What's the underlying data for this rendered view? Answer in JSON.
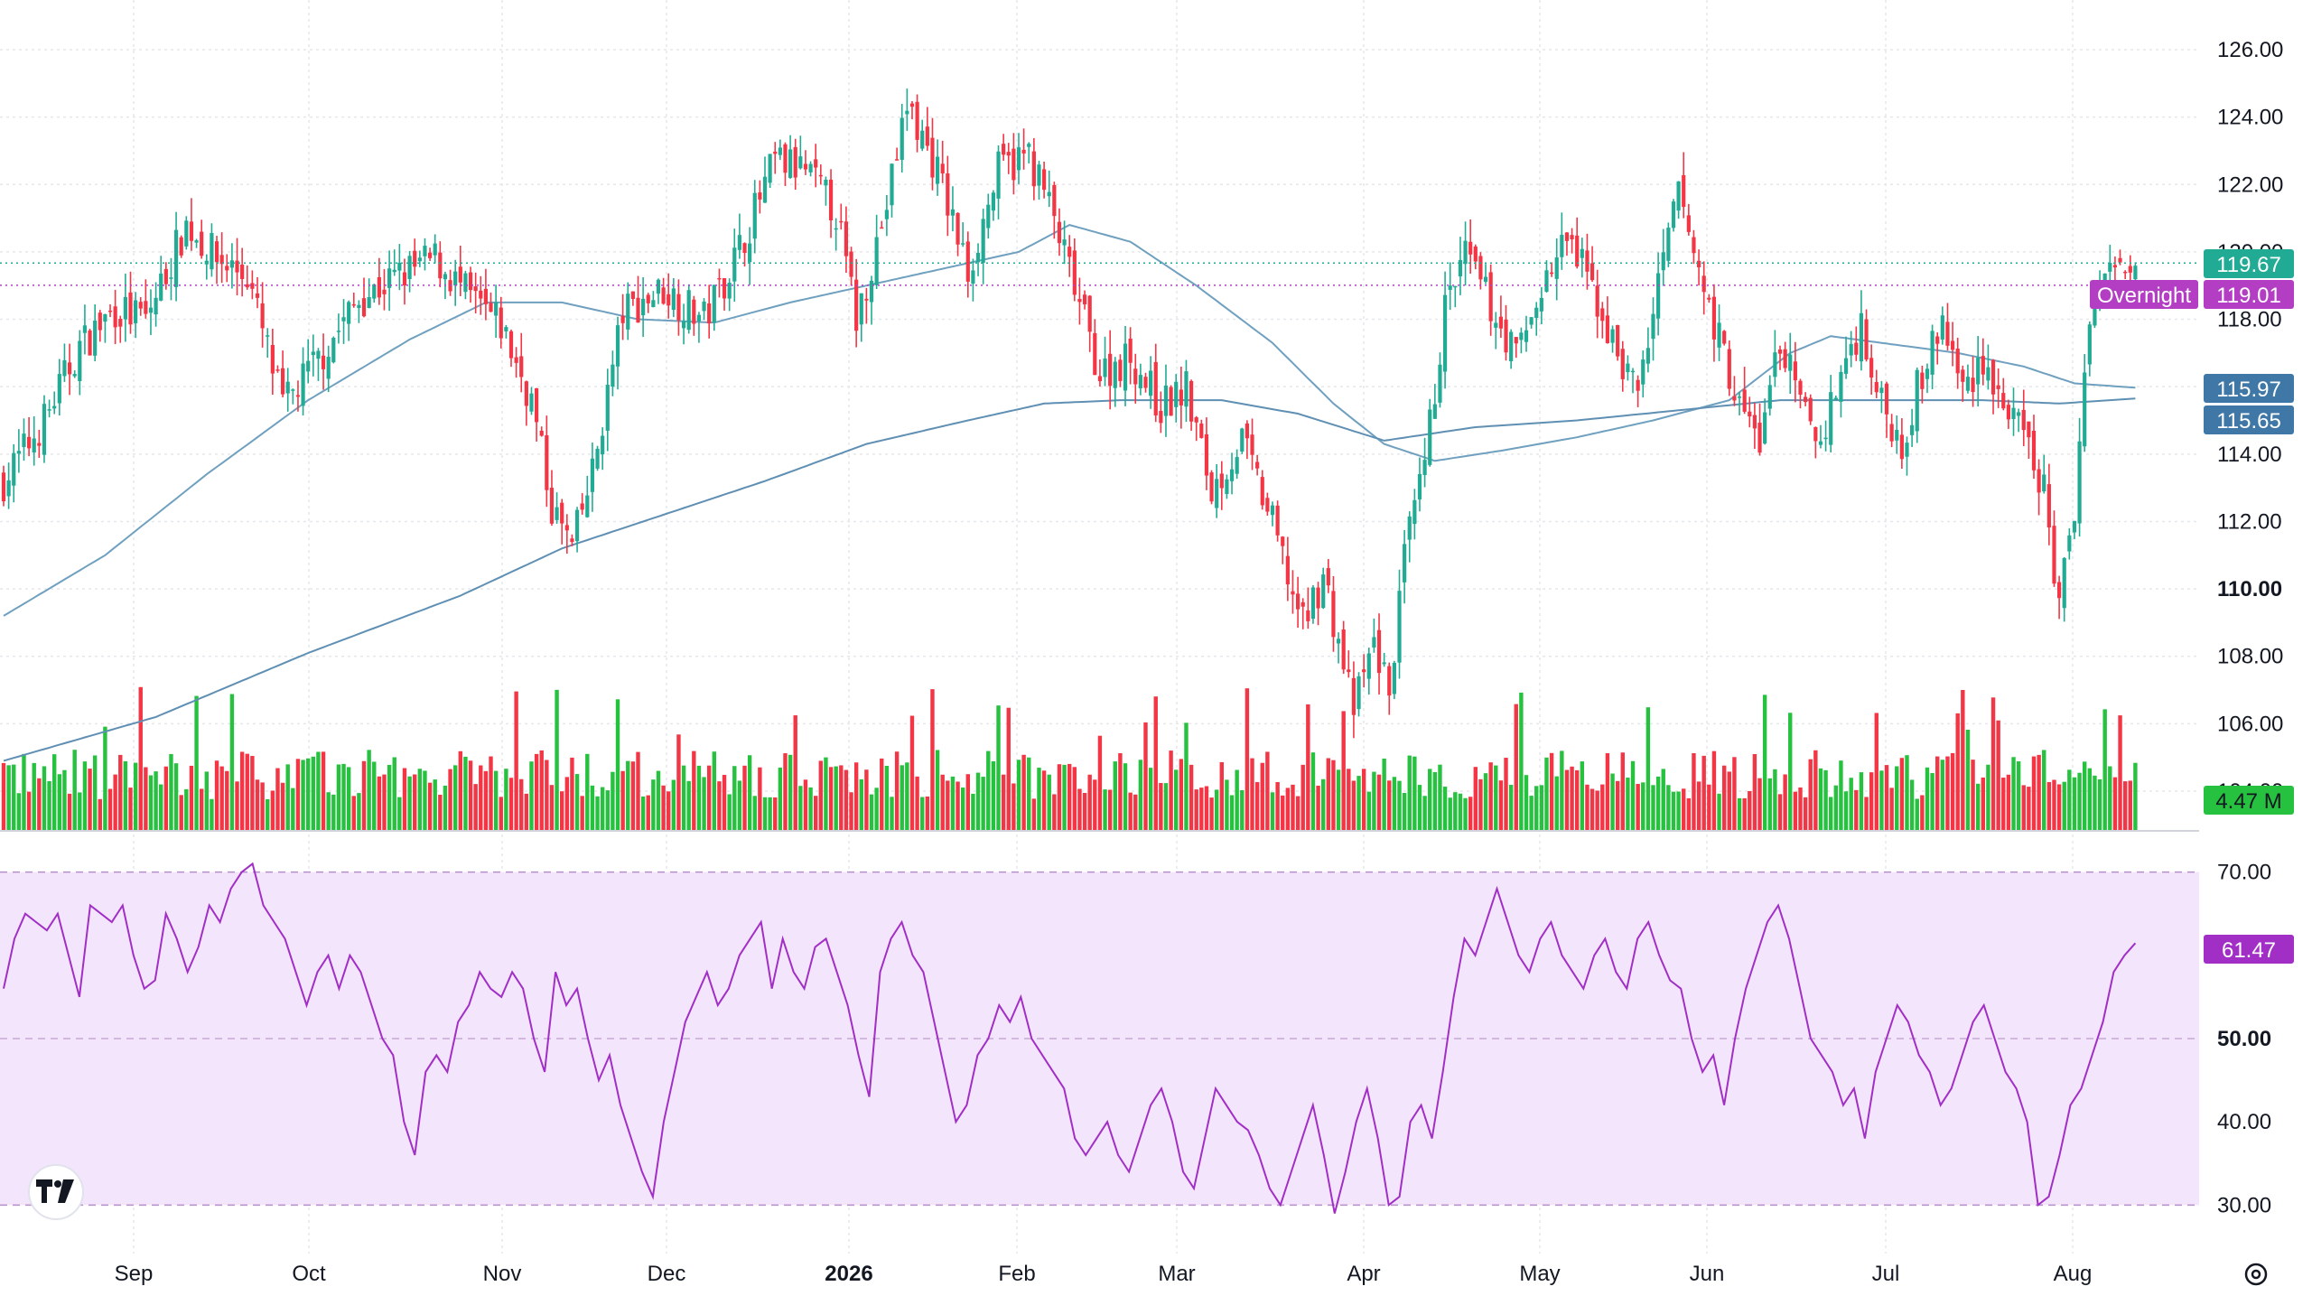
{
  "chart_data": {
    "type": "candlestick",
    "x_labels": [
      "Sep",
      "Oct",
      "Nov",
      "Dec",
      "2026",
      "Feb",
      "Mar",
      "Apr",
      "May",
      "Jun",
      "Jul",
      "Aug"
    ],
    "bold_x_label": "2026",
    "price_axis": {
      "ticks": [
        "126.00",
        "124.00",
        "122.00",
        "120.00",
        "118.00",
        "116.00",
        "114.00",
        "112.00",
        "110.00",
        "108.00",
        "106.00",
        "104.00"
      ],
      "bold_tick": "110.00",
      "range": [
        104,
        126
      ]
    },
    "price_anchors": [
      [
        0,
        113.2
      ],
      [
        8,
        115.0
      ],
      [
        15,
        117.2
      ],
      [
        22,
        118.3
      ],
      [
        28,
        118.0
      ],
      [
        36,
        120.8
      ],
      [
        42,
        119.8
      ],
      [
        48,
        119.3
      ],
      [
        55,
        115.4
      ],
      [
        62,
        116.8
      ],
      [
        70,
        118.6
      ],
      [
        78,
        119.3
      ],
      [
        85,
        119.8
      ],
      [
        92,
        118.6
      ],
      [
        98,
        117.8
      ],
      [
        104,
        115.6
      ],
      [
        108,
        112.4
      ],
      [
        112,
        111.2
      ],
      [
        116,
        113.4
      ],
      [
        122,
        118.2
      ],
      [
        130,
        118.9
      ],
      [
        138,
        118.0
      ],
      [
        145,
        120.1
      ],
      [
        152,
        122.7
      ],
      [
        158,
        122.4
      ],
      [
        164,
        121.2
      ],
      [
        168,
        118.0
      ],
      [
        174,
        121.4
      ],
      [
        178,
        124.4
      ],
      [
        184,
        122.4
      ],
      [
        190,
        119.4
      ],
      [
        196,
        122.4
      ],
      [
        202,
        122.9
      ],
      [
        206,
        121.4
      ],
      [
        212,
        118.4
      ],
      [
        216,
        116.4
      ],
      [
        222,
        116.9
      ],
      [
        228,
        115.4
      ],
      [
        233,
        115.9
      ],
      [
        238,
        112.9
      ],
      [
        244,
        114.4
      ],
      [
        250,
        111.9
      ],
      [
        256,
        108.9
      ],
      [
        260,
        110.4
      ],
      [
        266,
        106.4
      ],
      [
        270,
        108.4
      ],
      [
        273,
        106.9
      ],
      [
        276,
        110.9
      ],
      [
        280,
        113.6
      ],
      [
        284,
        118.3
      ],
      [
        288,
        119.9
      ],
      [
        293,
        118.4
      ],
      [
        298,
        116.9
      ],
      [
        303,
        118.9
      ],
      [
        308,
        120.4
      ],
      [
        313,
        118.9
      ],
      [
        318,
        116.9
      ],
      [
        322,
        115.9
      ],
      [
        326,
        118.9
      ],
      [
        330,
        121.8
      ],
      [
        334,
        119.4
      ],
      [
        338,
        117.4
      ],
      [
        342,
        115.4
      ],
      [
        346,
        114.4
      ],
      [
        350,
        117.4
      ],
      [
        354,
        115.4
      ],
      [
        358,
        114.4
      ],
      [
        362,
        116.4
      ],
      [
        366,
        117.9
      ],
      [
        370,
        115.4
      ],
      [
        374,
        114.4
      ],
      [
        378,
        116.4
      ],
      [
        382,
        117.9
      ],
      [
        386,
        115.9
      ],
      [
        390,
        116.9
      ],
      [
        394,
        115.4
      ],
      [
        398,
        114.4
      ],
      [
        402,
        112.9
      ],
      [
        405,
        109.4
      ],
      [
        408,
        112.4
      ],
      [
        411,
        118.4
      ],
      [
        414,
        119.3
      ],
      [
        418,
        119.6
      ],
      [
        420,
        119.7
      ]
    ],
    "ma_series": [
      {
        "color": "#6fa0bf",
        "points": [
          [
            0,
            109.2
          ],
          [
            20,
            111.0
          ],
          [
            40,
            113.4
          ],
          [
            60,
            115.6
          ],
          [
            80,
            117.4
          ],
          [
            95,
            118.5
          ],
          [
            110,
            118.5
          ],
          [
            125,
            118.0
          ],
          [
            140,
            117.9
          ],
          [
            155,
            118.5
          ],
          [
            170,
            119.0
          ],
          [
            185,
            119.5
          ],
          [
            200,
            120.0
          ],
          [
            210,
            120.8
          ],
          [
            222,
            120.3
          ],
          [
            235,
            119.0
          ],
          [
            250,
            117.3
          ],
          [
            262,
            115.5
          ],
          [
            272,
            114.3
          ],
          [
            282,
            113.8
          ],
          [
            295,
            114.1
          ],
          [
            310,
            114.5
          ],
          [
            325,
            115.0
          ],
          [
            340,
            115.6
          ],
          [
            352,
            117.0
          ],
          [
            360,
            117.5
          ],
          [
            370,
            117.3
          ],
          [
            385,
            117.0
          ],
          [
            398,
            116.6
          ],
          [
            408,
            116.1
          ],
          [
            420,
            115.97
          ]
        ]
      },
      {
        "color": "#5f8fb3",
        "points": [
          [
            0,
            104.9
          ],
          [
            30,
            106.2
          ],
          [
            60,
            108.1
          ],
          [
            90,
            109.8
          ],
          [
            110,
            111.2
          ],
          [
            130,
            112.2
          ],
          [
            150,
            113.2
          ],
          [
            170,
            114.3
          ],
          [
            190,
            115.0
          ],
          [
            205,
            115.5
          ],
          [
            220,
            115.6
          ],
          [
            240,
            115.6
          ],
          [
            255,
            115.2
          ],
          [
            272,
            114.4
          ],
          [
            290,
            114.8
          ],
          [
            310,
            115.0
          ],
          [
            330,
            115.3
          ],
          [
            350,
            115.6
          ],
          [
            370,
            115.6
          ],
          [
            390,
            115.6
          ],
          [
            405,
            115.5
          ],
          [
            420,
            115.65
          ]
        ]
      }
    ],
    "rsi_axis": {
      "ticks": [
        "70.00",
        "60.00",
        "50.00",
        "40.00",
        "30.00"
      ],
      "bold_tick": "50.00",
      "range": [
        27,
        73
      ]
    },
    "rsi_values": [
      56,
      62,
      65,
      64,
      63,
      65,
      60,
      55,
      66,
      65,
      64,
      66,
      60,
      56,
      57,
      65,
      62,
      58,
      61,
      66,
      64,
      68,
      70,
      71,
      66,
      64,
      62,
      58,
      54,
      58,
      60,
      56,
      60,
      58,
      54,
      50,
      48,
      40,
      36,
      46,
      48,
      46,
      52,
      54,
      58,
      56,
      55,
      58,
      56,
      50,
      46,
      58,
      54,
      56,
      50,
      45,
      48,
      42,
      38,
      34,
      31,
      40,
      46,
      52,
      55,
      58,
      54,
      56,
      60,
      62,
      64,
      56,
      62,
      58,
      56,
      61,
      62,
      58,
      54,
      48,
      43,
      58,
      62,
      64,
      60,
      58,
      52,
      46,
      40,
      42,
      48,
      50,
      54,
      52,
      55,
      50,
      48,
      46,
      44,
      38,
      36,
      38,
      40,
      36,
      34,
      38,
      42,
      44,
      40,
      34,
      32,
      38,
      44,
      42,
      40,
      39,
      36,
      32,
      30,
      34,
      38,
      42,
      36,
      29,
      34,
      40,
      44,
      38,
      30,
      31,
      40,
      42,
      38,
      46,
      55,
      62,
      60,
      64,
      68,
      64,
      60,
      58,
      62,
      64,
      60,
      58,
      56,
      60,
      62,
      58,
      56,
      62,
      64,
      60,
      57,
      56,
      50,
      46,
      48,
      42,
      50,
      56,
      60,
      64,
      66,
      62,
      56,
      50,
      48,
      46,
      42,
      44,
      38,
      46,
      50,
      54,
      52,
      48,
      46,
      42,
      44,
      48,
      52,
      54,
      50,
      46,
      44,
      40,
      30,
      31,
      36,
      42,
      44,
      48,
      52,
      58,
      60,
      61.47
    ],
    "last_values": {
      "close": "119.67",
      "overnight_label": "Overnight",
      "overnight": "119.01",
      "ma_fast": "115.97",
      "ma_slow": "115.65",
      "volume": "4.47 M",
      "rsi": "61.47"
    },
    "colors": {
      "up": "#22ab94",
      "down": "#f23645",
      "vol_up": "#26c13f",
      "vol_down": "#f23645",
      "ma_fast": "#6fa0bf",
      "ma_slow": "#5f8fb3",
      "rsi_line": "#a12fc6",
      "rsi_fill": "#f3e5fb",
      "close_tag": "#22ab94",
      "overnight_tag": "#b33ec4",
      "ma_tag": "#3f78a6",
      "volume_tag": "#26c13f",
      "rsi_tag": "#a12fc6",
      "grid": "#e6e7ea"
    },
    "icons": {
      "logo": "tradingview-logo",
      "settings": "gear-icon"
    }
  }
}
